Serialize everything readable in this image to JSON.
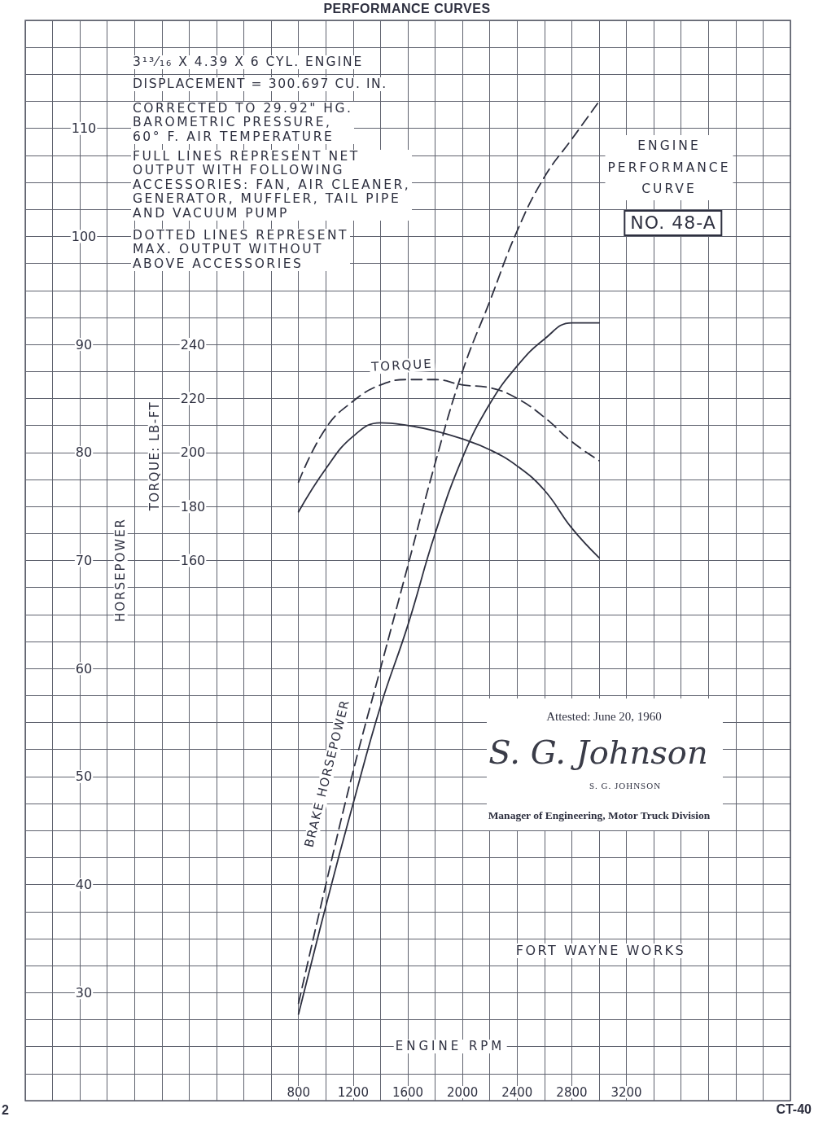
{
  "chart_data": {
    "type": "line",
    "title": "PERFORMANCE CURVES",
    "xlabel": "ENGINE RPM",
    "ylabel": "HORSEPOWER",
    "y2label": "TORQUE: LB-FT",
    "x": [
      800,
      1000,
      1200,
      1400,
      1600,
      1800,
      2000,
      2200,
      2400,
      2600,
      2800,
      3000
    ],
    "series": [
      {
        "color": "#2e3040",
        "line_style": "solid",
        "values": [
          28,
          38,
          47.5,
          56.5,
          64,
          72.5,
          79.5,
          84.5,
          88,
          90.5,
          92,
          92
        ]
      },
      {
        "color": "#2e3040",
        "line_style": "dashed",
        "values": [
          29,
          40,
          50.5,
          60,
          69.5,
          79,
          87.5,
          94,
          100.5,
          105.5,
          109,
          112.5
        ]
      },
      {
        "color": "#2e3040",
        "line_style": "solid",
        "axis": "y2",
        "values": [
          178,
          194,
          206,
          211,
          210,
          208,
          205,
          201,
          195,
          186,
          172,
          161
        ]
      },
      {
        "color": "#2e3040",
        "line_style": "dashed",
        "axis": "y2",
        "values": [
          189,
          209,
          219,
          225,
          227,
          227,
          225,
          224,
          220,
          213,
          204,
          197
        ]
      }
    ],
    "xlim": [
      -1200,
      4400
    ],
    "xticks": [
      {
        "value": -1200,
        "label": null
      },
      {
        "value": -1000,
        "label": null
      },
      {
        "value": -800,
        "label": null
      },
      {
        "value": -600,
        "label": null
      },
      {
        "value": -400,
        "label": null
      },
      {
        "value": -200,
        "label": null
      },
      {
        "value": 0,
        "label": null
      },
      {
        "value": 200,
        "label": null
      },
      {
        "value": 400,
        "label": null
      },
      {
        "value": 600,
        "label": null
      },
      800,
      {
        "value": 1000,
        "label": null
      },
      1200,
      {
        "value": 1400,
        "label": null
      },
      1600,
      {
        "value": 1800,
        "label": null
      },
      2000,
      {
        "value": 2200,
        "label": null
      },
      2400,
      {
        "value": 2600,
        "label": null
      },
      2800,
      {
        "value": 3000,
        "label": null
      },
      3200,
      {
        "value": 3400,
        "label": null
      },
      {
        "value": 3600,
        "label": null
      },
      {
        "value": 3800,
        "label": null
      },
      {
        "value": 4000,
        "label": null
      },
      {
        "value": 4200,
        "label": null
      },
      {
        "value": 4400,
        "label": null
      }
    ],
    "ylim": [
      20,
      120
    ],
    "yticks": [
      {
        "value": 20,
        "label": null
      },
      {
        "value": 22.5,
        "label": null
      },
      {
        "value": 25,
        "label": null
      },
      {
        "value": 27.5,
        "label": null
      },
      30,
      {
        "value": 32.5,
        "label": null
      },
      {
        "value": 35,
        "label": null
      },
      {
        "value": 37.5,
        "label": null
      },
      40,
      {
        "value": 42.5,
        "label": null
      },
      {
        "value": 45,
        "label": null
      },
      {
        "value": 47.5,
        "label": null
      },
      50,
      {
        "value": 52.5,
        "label": null
      },
      {
        "value": 55,
        "label": null
      },
      {
        "value": 57.5,
        "label": null
      },
      60,
      {
        "value": 62.5,
        "label": null
      },
      {
        "value": 65,
        "label": null
      },
      {
        "value": 67.5,
        "label": null
      },
      70,
      {
        "value": 72.5,
        "label": null
      },
      {
        "value": 75,
        "label": null
      },
      {
        "value": 77.5,
        "label": null
      },
      80,
      {
        "value": 82.5,
        "label": null
      },
      {
        "value": 85,
        "label": null
      },
      {
        "value": 87.5,
        "label": null
      },
      90,
      {
        "value": 92.5,
        "label": null
      },
      {
        "value": 95,
        "label": null
      },
      {
        "value": 97.5,
        "label": null
      },
      100,
      {
        "value": 102.5,
        "label": null
      },
      {
        "value": 105,
        "label": null
      },
      {
        "value": 107.5,
        "label": null
      },
      110,
      {
        "value": 112.5,
        "label": null
      },
      {
        "value": 115,
        "label": null
      },
      {
        "value": 117.5,
        "label": null
      },
      {
        "value": 120,
        "label": null
      }
    ],
    "y2lim": [
      -40,
      360
    ],
    "y2ticks": [
      160,
      180,
      200,
      220,
      240
    ],
    "grid": true,
    "annotations": [
      "3¹³⁄₁₆ X 4.39 X 6 CYL. ENGINE",
      "DISPLACEMENT = 300.697 CU. IN.",
      "CORRECTED TO 29.92\" HG.\nBAROMETRIC PRESSURE,\n60° F. AIR TEMPERATURE",
      "FULL LINES REPRESENT NET\nOUTPUT WITH FOLLOWING\nACCESSORIES: FAN, AIR CLEANER,\nGENERATOR, MUFFLER, TAIL PIPE\nAND VACUUM PUMP",
      "DOTTED LINES REPRESENT\nMAX. OUTPUT WITHOUT\nABOVE ACCESSORIES",
      "ENGINE\nPERFORMANCE\nCURVE",
      "NO. 48-A",
      "TORQUE",
      "BRAKE HORSEPOWER",
      "Attested: June 20, 1960",
      "S. G. Johnson",
      "S. G. JOHNSON",
      "Manager of Engineering, Motor Truck Division",
      "FORT WAYNE WORKS",
      "CT-40",
      "2"
    ]
  }
}
